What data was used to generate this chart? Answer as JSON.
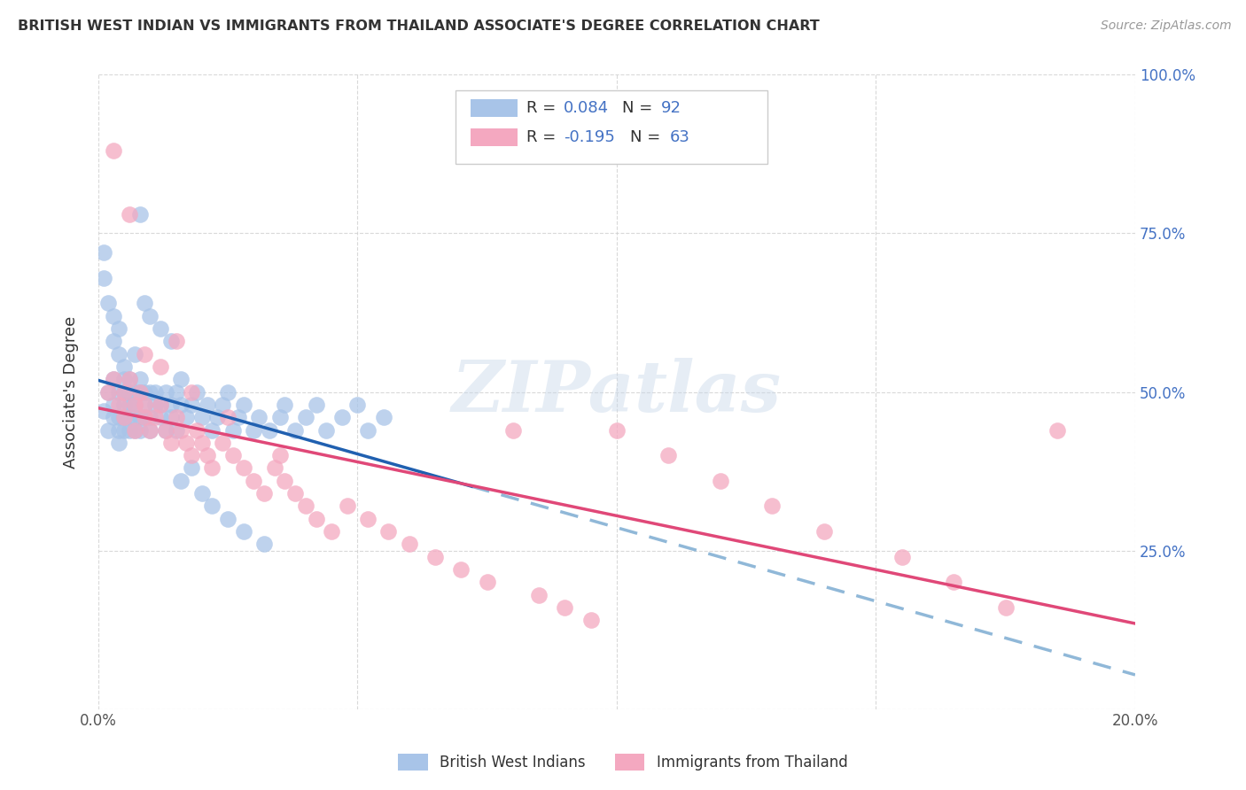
{
  "title": "BRITISH WEST INDIAN VS IMMIGRANTS FROM THAILAND ASSOCIATE'S DEGREE CORRELATION CHART",
  "source": "Source: ZipAtlas.com",
  "ylabel": "Associate's Degree",
  "legend_label1": "British West Indians",
  "legend_label2": "Immigrants from Thailand",
  "r1": 0.084,
  "n1": 92,
  "r2": -0.195,
  "n2": 63,
  "color1": "#a8c4e8",
  "color2": "#f4a8c0",
  "trendline1_solid_color": "#2060b0",
  "trendline1_dashed_color": "#90b8d8",
  "trendline2_color": "#e04878",
  "watermark": "ZIPatlas",
  "blue_x": [
    0.001,
    0.002,
    0.002,
    0.003,
    0.003,
    0.003,
    0.004,
    0.004,
    0.004,
    0.004,
    0.005,
    0.005,
    0.005,
    0.005,
    0.005,
    0.006,
    0.006,
    0.006,
    0.006,
    0.007,
    0.007,
    0.007,
    0.007,
    0.008,
    0.008,
    0.008,
    0.008,
    0.009,
    0.009,
    0.009,
    0.01,
    0.01,
    0.01,
    0.011,
    0.011,
    0.012,
    0.012,
    0.013,
    0.013,
    0.014,
    0.014,
    0.015,
    0.015,
    0.016,
    0.016,
    0.017,
    0.018,
    0.019,
    0.02,
    0.021,
    0.022,
    0.023,
    0.024,
    0.025,
    0.026,
    0.027,
    0.028,
    0.03,
    0.031,
    0.033,
    0.035,
    0.036,
    0.038,
    0.04,
    0.042,
    0.044,
    0.047,
    0.05,
    0.052,
    0.055,
    0.001,
    0.001,
    0.002,
    0.003,
    0.003,
    0.004,
    0.004,
    0.005,
    0.006,
    0.007,
    0.008,
    0.009,
    0.01,
    0.012,
    0.014,
    0.016,
    0.018,
    0.02,
    0.022,
    0.025,
    0.028,
    0.032
  ],
  "blue_y": [
    0.47,
    0.5,
    0.44,
    0.52,
    0.46,
    0.48,
    0.5,
    0.44,
    0.46,
    0.42,
    0.5,
    0.46,
    0.44,
    0.52,
    0.48,
    0.5,
    0.44,
    0.46,
    0.48,
    0.5,
    0.44,
    0.46,
    0.48,
    0.5,
    0.46,
    0.44,
    0.52,
    0.5,
    0.46,
    0.48,
    0.5,
    0.44,
    0.46,
    0.48,
    0.5,
    0.46,
    0.48,
    0.5,
    0.44,
    0.48,
    0.46,
    0.5,
    0.44,
    0.48,
    0.52,
    0.46,
    0.48,
    0.5,
    0.46,
    0.48,
    0.44,
    0.46,
    0.48,
    0.5,
    0.44,
    0.46,
    0.48,
    0.44,
    0.46,
    0.44,
    0.46,
    0.48,
    0.44,
    0.46,
    0.48,
    0.44,
    0.46,
    0.48,
    0.44,
    0.46,
    0.68,
    0.72,
    0.64,
    0.62,
    0.58,
    0.56,
    0.6,
    0.54,
    0.52,
    0.56,
    0.78,
    0.64,
    0.62,
    0.6,
    0.58,
    0.36,
    0.38,
    0.34,
    0.32,
    0.3,
    0.28,
    0.26
  ],
  "pink_x": [
    0.002,
    0.003,
    0.004,
    0.005,
    0.005,
    0.006,
    0.007,
    0.007,
    0.008,
    0.009,
    0.009,
    0.01,
    0.011,
    0.012,
    0.013,
    0.014,
    0.015,
    0.016,
    0.017,
    0.018,
    0.019,
    0.02,
    0.021,
    0.022,
    0.024,
    0.026,
    0.028,
    0.03,
    0.032,
    0.034,
    0.036,
    0.038,
    0.04,
    0.042,
    0.045,
    0.048,
    0.052,
    0.056,
    0.06,
    0.065,
    0.07,
    0.075,
    0.08,
    0.085,
    0.09,
    0.095,
    0.1,
    0.11,
    0.12,
    0.13,
    0.14,
    0.155,
    0.165,
    0.175,
    0.185,
    0.003,
    0.006,
    0.009,
    0.012,
    0.015,
    0.018,
    0.025,
    0.035
  ],
  "pink_y": [
    0.5,
    0.52,
    0.48,
    0.5,
    0.46,
    0.52,
    0.48,
    0.44,
    0.5,
    0.46,
    0.48,
    0.44,
    0.46,
    0.48,
    0.44,
    0.42,
    0.46,
    0.44,
    0.42,
    0.4,
    0.44,
    0.42,
    0.4,
    0.38,
    0.42,
    0.4,
    0.38,
    0.36,
    0.34,
    0.38,
    0.36,
    0.34,
    0.32,
    0.3,
    0.28,
    0.32,
    0.3,
    0.28,
    0.26,
    0.24,
    0.22,
    0.2,
    0.44,
    0.18,
    0.16,
    0.14,
    0.44,
    0.4,
    0.36,
    0.32,
    0.28,
    0.24,
    0.2,
    0.16,
    0.44,
    0.88,
    0.78,
    0.56,
    0.54,
    0.58,
    0.5,
    0.46,
    0.4
  ]
}
